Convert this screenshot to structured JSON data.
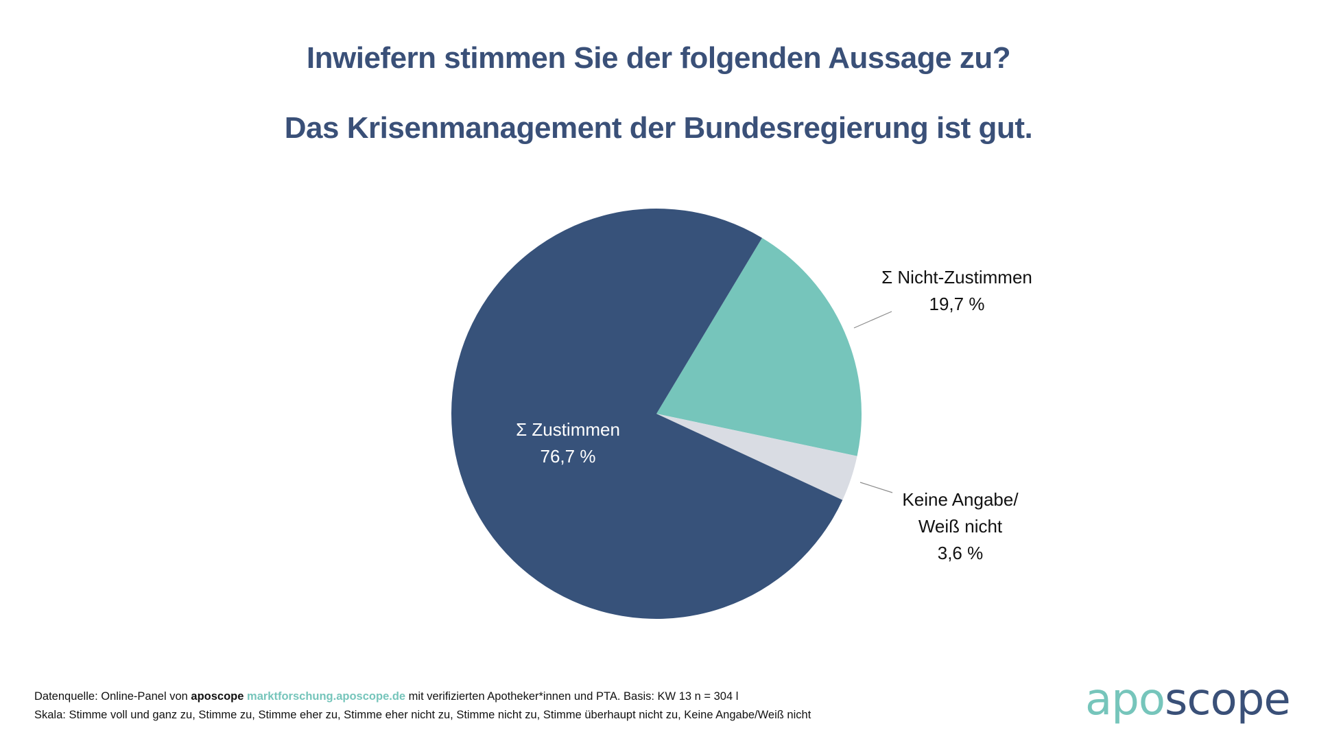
{
  "header": {
    "title": "Inwiefern stimmen Sie der folgenden Aussage zu?",
    "subtitle": "Das Krisenmanagement der Bundesregierung ist gut."
  },
  "colors": {
    "title": "#3a5078",
    "zustimmen": "#37527a",
    "nicht_zustimmen": "#76c5bb",
    "keine_angabe": "#d9dce3",
    "leader_line": "#8c8c8c",
    "brand_teal": "#76c5bb",
    "brand_navy": "#3a5078"
  },
  "chart_data": {
    "type": "pie",
    "title": "Inwiefern stimmen Sie der folgenden Aussage zu?",
    "subtitle": "Das Krisenmanagement der Bundesregierung ist gut.",
    "slices": [
      {
        "label": "Σ Nicht-Zustimmen",
        "value": 19.7,
        "value_label": "19,7 %",
        "color": "#76c5bb",
        "label_lines": [
          "Σ Nicht-Zustimmen",
          "19,7 %"
        ]
      },
      {
        "label": "Keine Angabe/ Weiß nicht",
        "value": 3.6,
        "value_label": "3,6 %",
        "color": "#d9dce3",
        "label_lines": [
          "Keine Angabe/",
          "Weiß nicht",
          "3,6 %"
        ]
      },
      {
        "label": "Σ Zustimmen",
        "value": 76.7,
        "value_label": "76,7 %",
        "color": "#37527a",
        "label_lines": [
          "Σ Zustimmen",
          "76,7 %"
        ]
      }
    ],
    "start_angle_deg": 31,
    "direction": "clockwise",
    "unit": "%"
  },
  "footer": {
    "source_prefix": "Datenquelle: Online-Panel von ",
    "source_brand": "aposcope",
    "source_link": "marktforschung.aposcope.de",
    "source_suffix": " mit verifizierten Apotheker*innen und PTA. Basis: KW 13 n = 304 l",
    "scale": "Skala: Stimme voll und ganz zu, Stimme zu, Stimme eher zu, Stimme eher nicht zu, Stimme nicht zu, Stimme überhaupt nicht zu, Keine Angabe/Weiß nicht"
  },
  "logo": {
    "part1": "apo",
    "part2": "scope"
  }
}
